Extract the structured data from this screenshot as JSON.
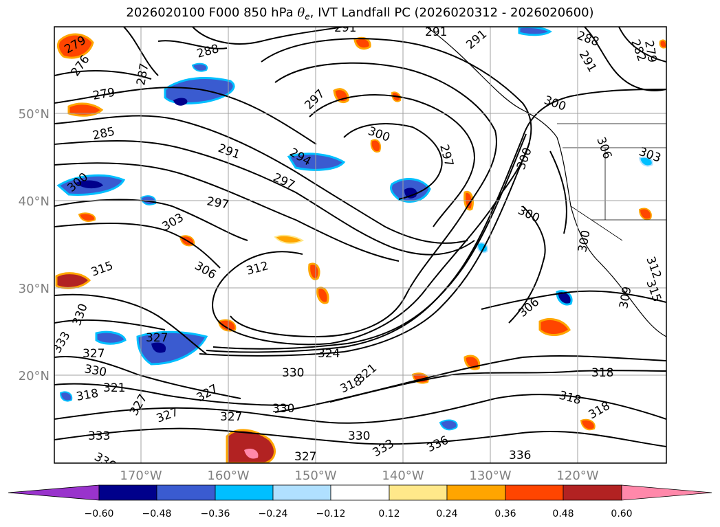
{
  "title": {
    "prefix": "2026020100 F000 850 hPa ",
    "symbol": "θ",
    "subscript": "e",
    "suffix": ", IVT Landfall PC (2026020312 - 2026020600)"
  },
  "map": {
    "lat_labels": [
      "50°N",
      "40°N",
      "30°N",
      "20°N"
    ],
    "lon_labels": [
      "170°W",
      "160°W",
      "150°W",
      "140°W",
      "130°W",
      "120°W"
    ],
    "gridline_color": "#808080",
    "contour_color": "#000000"
  },
  "contour_labels": [
    "279",
    "276",
    "287",
    "288",
    "291",
    "291",
    "291",
    "288",
    "291",
    "282",
    "279",
    "279",
    "297",
    "285",
    "291",
    "294",
    "300",
    "297",
    "297",
    "300",
    "300",
    "300",
    "306",
    "303",
    "300",
    "297",
    "303",
    "300",
    "312",
    "306",
    "315",
    "312",
    "315",
    "309",
    "306",
    "330",
    "327",
    "327",
    "324",
    "333",
    "330",
    "321",
    "318",
    "318",
    "330",
    "327",
    "327",
    "327",
    "330",
    "333",
    "336",
    "336",
    "333",
    "336",
    "330",
    "327",
    "318",
    "321",
    "318",
    "327",
    "318"
  ],
  "colorbar": {
    "tick_labels": [
      "−0.60",
      "−0.48",
      "−0.36",
      "−0.24",
      "−0.12",
      "0.12",
      "0.24",
      "0.36",
      "0.48",
      "0.60"
    ],
    "colors": [
      "#9933cc",
      "#00008b",
      "#3a5bd0",
      "#00bfff",
      "#b0e0ff",
      "#ffffff",
      "#ffe88a",
      "#ffa500",
      "#ff4500",
      "#b22222",
      "#ff88aa"
    ]
  }
}
